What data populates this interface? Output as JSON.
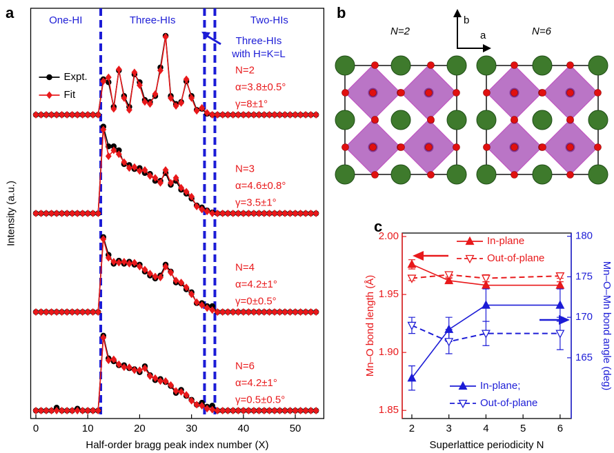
{
  "chart_data": [
    {
      "type": "line",
      "panel_label": "a",
      "xlabel": "Half-order bragg peak index number (X)",
      "ylabel": "Intensity (a.u.)",
      "xlim": [
        -1,
        55.5
      ],
      "xticks": [
        0,
        10,
        20,
        30,
        40,
        50
      ],
      "ylim": [
        -0.08,
        4.08
      ],
      "legend": "upper left",
      "vlines": [
        12.5,
        32.5,
        34.5
      ],
      "vline_color": "#1c1cd6",
      "regions": [
        "One-HI",
        "Three-HIs",
        "Two-HIs"
      ],
      "note": [
        "Three-HIs",
        "with H=K=L"
      ],
      "curve_labels": [
        [
          "N=2",
          "α=3.8±0.5°",
          "γ=8±1°"
        ],
        [
          "N=3",
          "α=4.6±0.8°",
          "γ=3.5±1°"
        ],
        [
          "N=4",
          "α=4.2±1°",
          "γ=0±0.5°"
        ],
        [
          "N=6",
          "α=4.2±1°",
          "γ=0.5±0.5°"
        ]
      ],
      "label_color": "#e8191b",
      "x": [
        0,
        1,
        2,
        3,
        4,
        5,
        6,
        7,
        8,
        9,
        10,
        11,
        12,
        13,
        14,
        15,
        16,
        17,
        18,
        19,
        20,
        21,
        22,
        23,
        24,
        25,
        26,
        27,
        28,
        29,
        30,
        31,
        32,
        33,
        34,
        35,
        36,
        37,
        38,
        39,
        40,
        41,
        42,
        43,
        44,
        45,
        46,
        47,
        48,
        49,
        50,
        51,
        52,
        53,
        54
      ],
      "series": [
        {
          "name": "Expt.",
          "color": "#000000",
          "marker": "circle",
          "values": [
            [
              3,
              3,
              3,
              3,
              3,
              3,
              3,
              3,
              3,
              3,
              3,
              3,
              3,
              3.36,
              3.33,
              3.08,
              3.45,
              3.19,
              3.08,
              3.41,
              3.33,
              3.15,
              3.13,
              3.19,
              3.48,
              3.8,
              3.19,
              3.11,
              3.13,
              3.34,
              3.19,
              3.05,
              3.06,
              3.01,
              3,
              3,
              3,
              3,
              3,
              3,
              3,
              3,
              3,
              3,
              3,
              3,
              3,
              3,
              3,
              3,
              3,
              3,
              3,
              3,
              3
            ],
            [
              2,
              2,
              2,
              2,
              2,
              2,
              2,
              2,
              2,
              2,
              2,
              2,
              2,
              2.88,
              2.68,
              2.68,
              2.64,
              2.5,
              2.49,
              2.45,
              2.46,
              2.41,
              2.4,
              2.33,
              2.33,
              2.41,
              2.29,
              2.33,
              2.24,
              2.2,
              2.15,
              2.08,
              2.06,
              2.03,
              2.01,
              2,
              2,
              2,
              2,
              2,
              2,
              2,
              2,
              2,
              2,
              2,
              2,
              2,
              2,
              2,
              2,
              2,
              2,
              2,
              2
            ],
            [
              1,
              1,
              1,
              1,
              1,
              1,
              1,
              1,
              1,
              1,
              1,
              1,
              1,
              1.76,
              1.58,
              1.49,
              1.52,
              1.49,
              1.51,
              1.48,
              1.48,
              1.41,
              1.37,
              1.34,
              1.37,
              1.48,
              1.41,
              1.3,
              1.29,
              1.23,
              1.2,
              1.09,
              1.09,
              1.06,
              1.06,
              1,
              1,
              1,
              1,
              1,
              1,
              1,
              1,
              1,
              1,
              1,
              1,
              1,
              1,
              1,
              1,
              1,
              1,
              1,
              1
            ],
            [
              0,
              0,
              0,
              0,
              0.03,
              0,
              0,
              0,
              0.02,
              0,
              0,
              0,
              0,
              0.76,
              0.53,
              0.5,
              0.46,
              0.46,
              0.43,
              0.42,
              0.39,
              0.45,
              0.36,
              0.31,
              0.32,
              0.29,
              0.25,
              0.18,
              0.21,
              0.15,
              0.11,
              0.06,
              0.08,
              0.04,
              0.05,
              0,
              0,
              0,
              0,
              0,
              0,
              0,
              0,
              0,
              0,
              0,
              0,
              0,
              0,
              0,
              0,
              0,
              0,
              0,
              0
            ]
          ]
        },
        {
          "name": "Fit",
          "color": "#e8191b",
          "marker": "diamond",
          "values": [
            [
              3,
              3,
              3,
              3,
              3,
              3,
              3,
              3,
              3,
              3,
              3,
              3,
              3,
              3.34,
              3.38,
              3.06,
              3.46,
              3.17,
              3.05,
              3.43,
              3.3,
              3.13,
              3.11,
              3.21,
              3.45,
              3.79,
              3.17,
              3.09,
              3.12,
              3.36,
              3.17,
              3.04,
              3.07,
              3.02,
              3,
              3,
              3,
              3,
              3,
              3,
              3,
              3,
              3,
              3,
              3,
              3,
              3,
              3,
              3,
              3,
              3,
              3,
              3,
              3,
              3
            ],
            [
              2,
              2,
              2,
              2,
              2,
              2,
              2,
              2,
              2,
              2,
              2,
              2,
              2,
              2.85,
              2.58,
              2.64,
              2.6,
              2.52,
              2.46,
              2.47,
              2.43,
              2.44,
              2.38,
              2.36,
              2.31,
              2.44,
              2.31,
              2.36,
              2.26,
              2.22,
              2.17,
              2.07,
              2.04,
              2.02,
              2,
              2,
              2,
              2,
              2,
              2,
              2,
              2,
              2,
              2,
              2,
              2,
              2,
              2,
              2,
              2,
              2,
              2,
              2,
              2,
              2
            ],
            [
              1,
              1,
              1,
              1,
              1,
              1,
              1,
              1,
              1,
              1,
              1,
              1,
              1,
              1.74,
              1.55,
              1.51,
              1.5,
              1.51,
              1.49,
              1.5,
              1.46,
              1.43,
              1.39,
              1.36,
              1.35,
              1.46,
              1.4,
              1.32,
              1.3,
              1.25,
              1.18,
              1.1,
              1.07,
              1.04,
              1.02,
              1,
              1,
              1,
              1,
              1,
              1,
              1,
              1,
              1,
              1,
              1,
              1,
              1,
              1,
              1,
              1,
              1,
              1,
              1,
              1
            ],
            [
              0,
              0,
              0,
              0,
              0,
              0,
              0,
              0,
              0,
              0,
              0,
              0,
              0,
              0.74,
              0.51,
              0.52,
              0.47,
              0.44,
              0.44,
              0.41,
              0.41,
              0.43,
              0.35,
              0.33,
              0.3,
              0.3,
              0.26,
              0.2,
              0.19,
              0.16,
              0.1,
              0.06,
              0.05,
              0.02,
              0.01,
              0,
              0,
              0,
              0,
              0,
              0,
              0,
              0,
              0,
              0,
              0,
              0,
              0,
              0,
              0,
              0,
              0,
              0,
              0,
              0
            ]
          ]
        }
      ]
    },
    {
      "type": "line",
      "panel_label": "c",
      "xlabel": "Superlattice periodicity N",
      "ylabel": "Mn–O bond length (Å)",
      "y2label": "Mn–O–Mn bond angle (deg)",
      "y_color": "#e8191b",
      "y2_color": "#1c1cd6",
      "xlim": [
        1.74,
        6.3
      ],
      "xticks": [
        2,
        3,
        4,
        5,
        6
      ],
      "ylim": [
        1.843,
        2.003
      ],
      "yticks": [
        1.85,
        {
          "value": 1.9,
          "label": "1.90"
        },
        1.95,
        {
          "value": 2,
          "label": "2.00"
        }
      ],
      "y2lim": [
        157.5,
        180.4
      ],
      "y2ticks": [
        165,
        170,
        175,
        180
      ],
      "x": [
        2,
        3,
        4,
        6
      ],
      "series": [
        {
          "name": "In-plane",
          "color": "#e8191b",
          "marker": "triangle-up",
          "filled": true,
          "dashed": false,
          "legend": "upper center",
          "values": [
            1.976,
            1.962,
            1.958,
            1.958
          ],
          "errors": [
            0.004,
            0.002,
            0.003,
            0.003
          ]
        },
        {
          "name": "Out-of-plane",
          "color": "#e8191b",
          "marker": "triangle-down",
          "filled": false,
          "dashed": true,
          "legend": "upper center",
          "values": [
            1.964,
            1.967,
            1.964,
            1.966
          ],
          "errors": [
            0.002,
            0.002,
            0.003,
            0.002
          ]
        },
        {
          "name": "In-plane;",
          "color": "#1c1cd6",
          "axis": "y2",
          "marker": "triangle-up",
          "filled": true,
          "dashed": false,
          "legend": "lower center",
          "values": [
            162.5,
            168.5,
            171.5,
            171.5
          ],
          "errors": [
            1.5,
            1.5,
            2,
            2
          ]
        },
        {
          "name": "Out-of-plane",
          "color": "#1c1cd6",
          "axis": "y2",
          "marker": "triangle-down",
          "filled": false,
          "dashed": true,
          "legend": "lower center",
          "values": [
            169,
            167,
            168,
            168
          ],
          "errors": [
            1,
            1.5,
            1.5,
            2
          ]
        }
      ]
    }
  ],
  "structure": {
    "panel_label": "b",
    "cells": [
      "N=2",
      "N=6"
    ],
    "axes": [
      "b",
      "a"
    ]
  }
}
